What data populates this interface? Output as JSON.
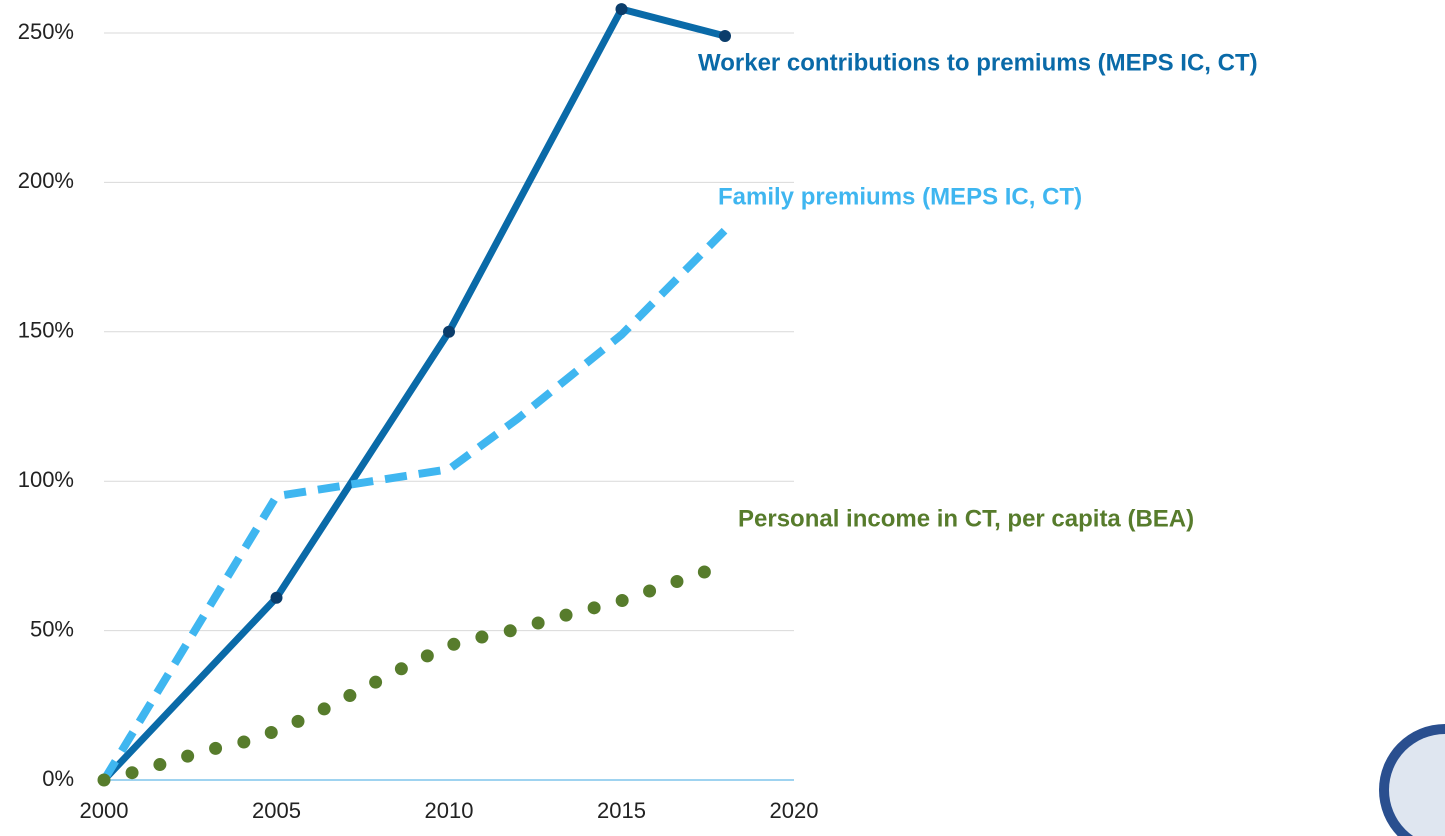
{
  "chart_data": {
    "type": "line",
    "xlim": [
      2000,
      2020
    ],
    "xticks": [
      2000,
      2005,
      2010,
      2015,
      2020
    ],
    "ylim": [
      0,
      250
    ],
    "yticks": [
      {
        "value": 0,
        "label": "0%"
      },
      {
        "value": 50,
        "label": "50%"
      },
      {
        "value": 100,
        "label": "100%"
      },
      {
        "value": 150,
        "label": "150%"
      },
      {
        "value": 200,
        "label": "200%"
      },
      {
        "value": 250,
        "label": "250%"
      }
    ],
    "grid": true,
    "series": [
      {
        "name": "Worker contributions to premiums (MEPS IC, CT)",
        "color": "#0a6aa8",
        "style": "solid",
        "markers": true,
        "x": [
          2000,
          2005,
          2010,
          2015,
          2018
        ],
        "values": [
          0,
          61,
          150,
          258,
          249
        ]
      },
      {
        "name": "Family premiums (MEPS IC, CT)",
        "color": "#3fb6f0",
        "style": "dashed",
        "markers": false,
        "x": [
          2000,
          2005,
          2010,
          2012,
          2015,
          2018
        ],
        "values": [
          0,
          95,
          104,
          121,
          149,
          184
        ]
      },
      {
        "name": "Personal income in CT, per capita (BEA)",
        "color": "#577c2c",
        "style": "dotted",
        "markers": false,
        "x": [
          2000,
          2001,
          2002,
          2003,
          2004,
          2005,
          2006,
          2007,
          2008,
          2009,
          2010,
          2011,
          2012,
          2013,
          2014,
          2015,
          2016,
          2017,
          2018
        ],
        "values": [
          0,
          3,
          6.5,
          10,
          12.5,
          16.5,
          21.5,
          27.5,
          33.5,
          39.5,
          45,
          48,
          50.5,
          54,
          57,
          60,
          64,
          68,
          72
        ]
      }
    ]
  }
}
